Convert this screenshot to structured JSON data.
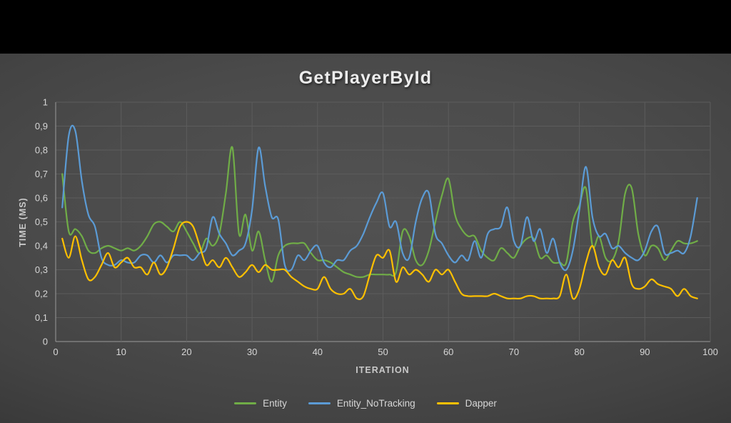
{
  "slide": {
    "title": "GetPlayerById"
  },
  "chart_data": {
    "type": "line",
    "title": "GetPlayerById",
    "xlabel": "ITERATION",
    "ylabel": "TIME (MS)",
    "xlim": [
      0,
      100
    ],
    "ylim": [
      0,
      1
    ],
    "x_start": 1,
    "grid": true,
    "legend_position": "bottom",
    "x_ticks": [
      "0",
      "10",
      "20",
      "30",
      "40",
      "50",
      "60",
      "70",
      "80",
      "90",
      "100"
    ],
    "y_ticks": [
      "0",
      "0,1",
      "0,2",
      "0,3",
      "0,4",
      "0,5",
      "0,6",
      "0,7",
      "0,8",
      "0,9",
      "1"
    ],
    "colors": {
      "entity": "#70AD47",
      "entity_no_tracking": "#5B9BD5",
      "dapper": "#FFC000"
    },
    "series": [
      {
        "name": "Entity",
        "color": "#70AD47",
        "values": [
          0.7,
          0.46,
          0.47,
          0.44,
          0.38,
          0.37,
          0.39,
          0.4,
          0.39,
          0.38,
          0.39,
          0.38,
          0.4,
          0.44,
          0.49,
          0.5,
          0.48,
          0.46,
          0.5,
          0.46,
          0.41,
          0.37,
          0.43,
          0.4,
          0.45,
          0.62,
          0.81,
          0.45,
          0.53,
          0.38,
          0.46,
          0.34,
          0.25,
          0.36,
          0.4,
          0.41,
          0.41,
          0.41,
          0.37,
          0.34,
          0.34,
          0.33,
          0.31,
          0.29,
          0.28,
          0.27,
          0.27,
          0.28,
          0.28,
          0.28,
          0.28,
          0.29,
          0.46,
          0.44,
          0.34,
          0.32,
          0.38,
          0.5,
          0.61,
          0.68,
          0.53,
          0.47,
          0.44,
          0.44,
          0.38,
          0.35,
          0.34,
          0.39,
          0.37,
          0.35,
          0.4,
          0.43,
          0.43,
          0.35,
          0.36,
          0.33,
          0.33,
          0.33,
          0.5,
          0.57,
          0.64,
          0.4,
          0.44,
          0.35,
          0.34,
          0.42,
          0.62,
          0.64,
          0.45,
          0.36,
          0.4,
          0.39,
          0.34,
          0.38,
          0.42,
          0.41,
          0.41,
          0.42
        ]
      },
      {
        "name": "Entity_NoTracking",
        "color": "#5B9BD5",
        "values": [
          0.56,
          0.86,
          0.88,
          0.67,
          0.53,
          0.48,
          0.35,
          0.32,
          0.32,
          0.34,
          0.33,
          0.33,
          0.36,
          0.36,
          0.33,
          0.36,
          0.33,
          0.36,
          0.36,
          0.36,
          0.34,
          0.37,
          0.39,
          0.52,
          0.45,
          0.41,
          0.36,
          0.38,
          0.41,
          0.55,
          0.81,
          0.65,
          0.52,
          0.51,
          0.32,
          0.3,
          0.36,
          0.34,
          0.38,
          0.4,
          0.33,
          0.31,
          0.34,
          0.34,
          0.38,
          0.4,
          0.45,
          0.52,
          0.58,
          0.62,
          0.48,
          0.5,
          0.37,
          0.35,
          0.5,
          0.6,
          0.62,
          0.45,
          0.41,
          0.36,
          0.33,
          0.36,
          0.34,
          0.42,
          0.35,
          0.45,
          0.47,
          0.48,
          0.56,
          0.42,
          0.4,
          0.52,
          0.42,
          0.47,
          0.37,
          0.43,
          0.33,
          0.3,
          0.38,
          0.55,
          0.73,
          0.52,
          0.44,
          0.45,
          0.39,
          0.4,
          0.37,
          0.35,
          0.34,
          0.38,
          0.46,
          0.48,
          0.37,
          0.37,
          0.38,
          0.37,
          0.44,
          0.6
        ]
      },
      {
        "name": "Dapper",
        "color": "#FFC000",
        "values": [
          0.43,
          0.35,
          0.44,
          0.34,
          0.26,
          0.27,
          0.32,
          0.37,
          0.31,
          0.33,
          0.35,
          0.31,
          0.31,
          0.28,
          0.33,
          0.28,
          0.31,
          0.39,
          0.48,
          0.5,
          0.48,
          0.4,
          0.32,
          0.34,
          0.31,
          0.35,
          0.31,
          0.27,
          0.29,
          0.32,
          0.29,
          0.32,
          0.3,
          0.3,
          0.3,
          0.27,
          0.25,
          0.23,
          0.22,
          0.22,
          0.27,
          0.22,
          0.2,
          0.2,
          0.22,
          0.18,
          0.19,
          0.28,
          0.36,
          0.35,
          0.38,
          0.25,
          0.31,
          0.28,
          0.3,
          0.28,
          0.25,
          0.3,
          0.28,
          0.3,
          0.25,
          0.2,
          0.19,
          0.19,
          0.19,
          0.19,
          0.2,
          0.19,
          0.18,
          0.18,
          0.18,
          0.19,
          0.19,
          0.18,
          0.18,
          0.18,
          0.19,
          0.28,
          0.18,
          0.22,
          0.33,
          0.4,
          0.31,
          0.28,
          0.34,
          0.31,
          0.35,
          0.24,
          0.22,
          0.23,
          0.26,
          0.24,
          0.23,
          0.22,
          0.19,
          0.22,
          0.19,
          0.18
        ]
      }
    ]
  }
}
